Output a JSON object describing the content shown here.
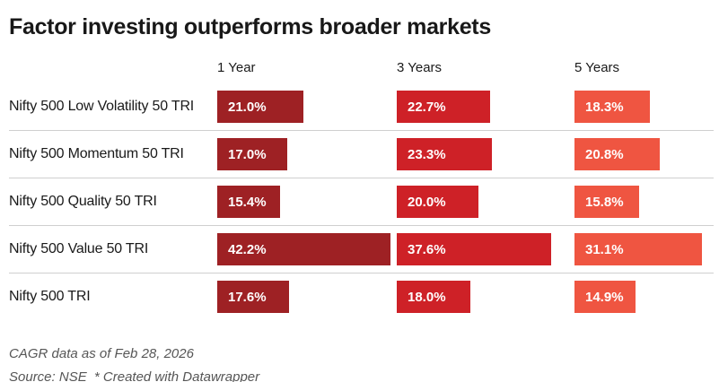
{
  "title": "Factor investing outperforms broader markets",
  "footer": {
    "note": "CAGR data as of Feb 28, 2026",
    "source_prefix": "Source: NSE",
    "attribution": "* Created with Datawrapper"
  },
  "chart_data": {
    "type": "bar",
    "title": "Factor investing outperforms broader markets",
    "value_suffix": "%",
    "xlim": [
      0,
      43.8
    ],
    "grid": false,
    "legend": "none",
    "columns": [
      {
        "label": "1 Year",
        "color": "#9e2124"
      },
      {
        "label": "3 Years",
        "color": "#ce2127"
      },
      {
        "label": "5 Years",
        "color": "#ef5541"
      }
    ],
    "rows": [
      {
        "label": "Nifty 500 Low Volatility 50 TRI",
        "values": [
          21.0,
          22.7,
          18.3
        ]
      },
      {
        "label": "Nifty 500 Momentum 50 TRI",
        "values": [
          17.0,
          23.3,
          20.8
        ]
      },
      {
        "label": "Nifty 500 Quality 50 TRI",
        "values": [
          15.4,
          20.0,
          15.8
        ]
      },
      {
        "label": "Nifty 500 Value 50 TRI",
        "values": [
          42.2,
          37.6,
          31.1
        ]
      },
      {
        "label": "Nifty 500 TRI",
        "values": [
          17.6,
          18.0,
          14.9
        ]
      }
    ]
  }
}
